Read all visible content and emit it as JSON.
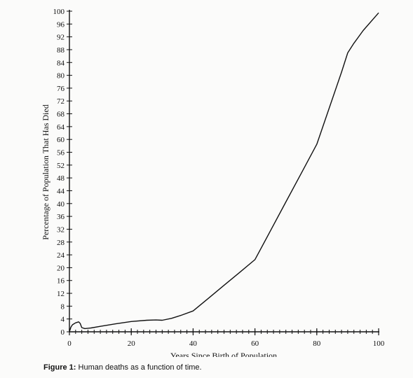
{
  "chart_data": {
    "type": "line",
    "xlabel": "Years Since Birth of Population",
    "ylabel": "Percentage of Population That Has Died",
    "xlim": [
      0,
      100
    ],
    "ylim": [
      0,
      100
    ],
    "x_ticks": [
      0,
      20,
      40,
      60,
      80,
      100
    ],
    "x_minor_step": 2,
    "y_ticks": [
      0,
      4,
      8,
      12,
      16,
      20,
      24,
      28,
      32,
      36,
      40,
      44,
      48,
      52,
      56,
      60,
      64,
      68,
      72,
      76,
      80,
      84,
      88,
      92,
      96,
      100
    ],
    "grid": false,
    "legend": "none",
    "series": [
      {
        "values_x": [
          0,
          0.5,
          1,
          2,
          3,
          3.5,
          4,
          5,
          7,
          10,
          15,
          20,
          25,
          28,
          30,
          33,
          36,
          40,
          45,
          50,
          55,
          60,
          65,
          70,
          75,
          80,
          85,
          88,
          90,
          92,
          95,
          100
        ],
        "values_y": [
          0,
          1.5,
          2.2,
          2.8,
          3.1,
          2.6,
          1.3,
          1.0,
          1.2,
          1.7,
          2.5,
          3.2,
          3.6,
          3.7,
          3.6,
          4.2,
          5.1,
          6.5,
          10.5,
          14.5,
          18.5,
          22.5,
          31.5,
          40.5,
          49.5,
          58.5,
          72.5,
          81,
          87,
          90,
          94,
          99.5
        ]
      }
    ]
  },
  "caption": {
    "label": "Figure 1:",
    "text": " Human deaths as a function of time."
  }
}
